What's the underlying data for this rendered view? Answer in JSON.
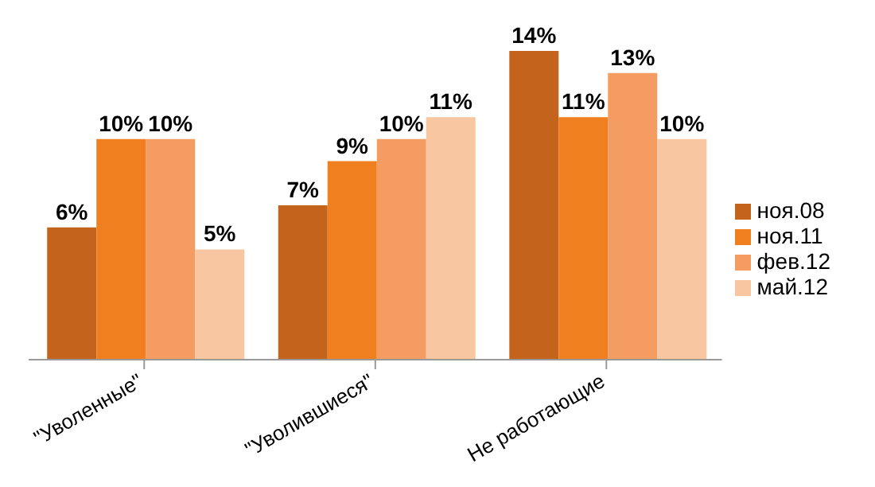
{
  "chart_data": {
    "type": "bar",
    "categories": [
      "\"Уволенные\"",
      "\"Уволившиеся\"",
      "Не работающие"
    ],
    "series": [
      {
        "name": "ноя.08",
        "color": "#c4631c",
        "values": [
          6,
          7,
          14
        ],
        "value_labels": [
          "6%",
          "7%",
          "14%"
        ]
      },
      {
        "name": "ноя.11",
        "color": "#f07f1f",
        "values": [
          10,
          9,
          11
        ],
        "value_labels": [
          "10%",
          "9%",
          "11%"
        ]
      },
      {
        "name": "фев.12",
        "color": "#f59c62",
        "values": [
          10,
          10,
          13
        ],
        "value_labels": [
          "10%",
          "10%",
          "13%"
        ]
      },
      {
        "name": "май.12",
        "color": "#f8c7a2",
        "values": [
          5,
          11,
          10
        ],
        "value_labels": [
          "5%",
          "11%",
          "10%"
        ]
      }
    ],
    "grid": false,
    "legend": "right"
  }
}
